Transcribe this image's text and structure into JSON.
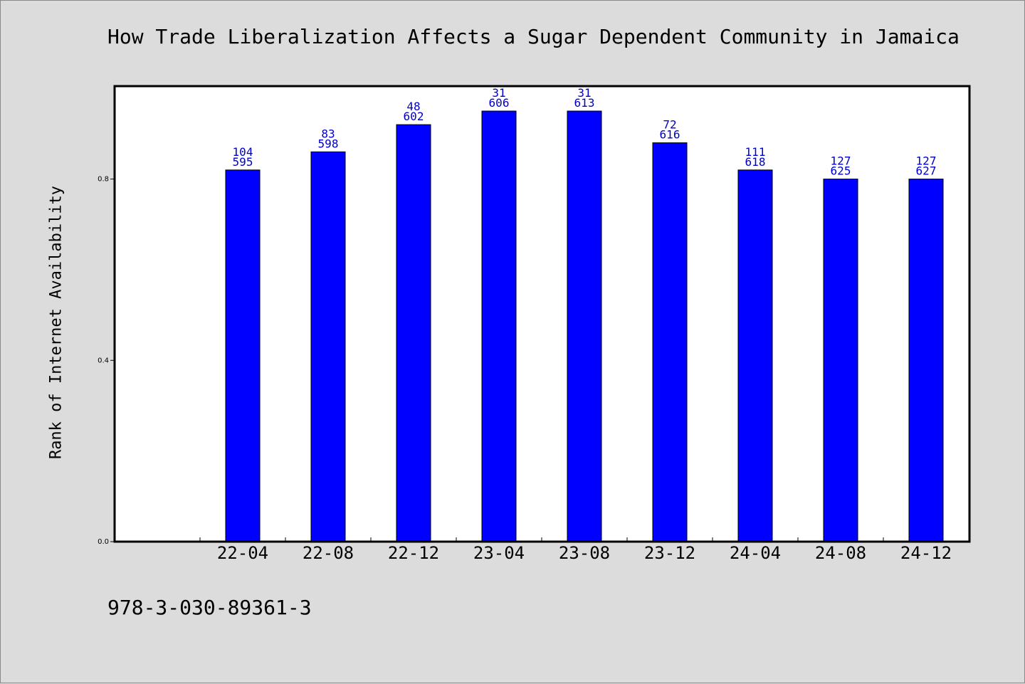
{
  "chart_data": {
    "type": "bar",
    "title": "How Trade Liberalization Affects a Sugar Dependent Community in Jamaica",
    "ylabel": "Rank of Internet Availability",
    "xlabel": "",
    "categories": [
      "22-04",
      "22-08",
      "22-12",
      "23-04",
      "23-08",
      "23-12",
      "24-04",
      "24-08",
      "24-12"
    ],
    "values": [
      0.82,
      0.86,
      0.92,
      0.95,
      0.95,
      0.88,
      0.82,
      0.8,
      0.8
    ],
    "label_top": [
      "104",
      "83",
      "48",
      "31",
      "31",
      "72",
      "111",
      "127",
      "127"
    ],
    "label_bottom": [
      "595",
      "598",
      "602",
      "606",
      "613",
      "616",
      "618",
      "625",
      "627"
    ],
    "ylim": [
      0,
      1.005
    ],
    "yticks": [
      "0.0",
      "0.4",
      "0.8"
    ],
    "ytick_values": [
      0.0,
      0.4,
      0.8
    ],
    "grid": false,
    "bar_color": "#0000ff",
    "label_color": "#0000cc"
  },
  "footer": {
    "code": "978-3-030-89361-3"
  }
}
